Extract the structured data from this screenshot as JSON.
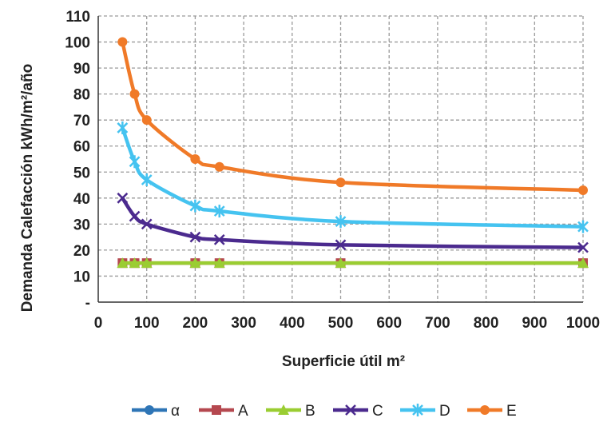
{
  "chart_data": {
    "type": "line",
    "title": "",
    "xlabel": "Superficie útil m²",
    "ylabel": "Demanda Calefacción kWh/m²/año",
    "xlim": [
      0,
      1000
    ],
    "ylim": [
      0,
      110
    ],
    "x_ticks": [
      "0",
      "100",
      "200",
      "300",
      "400",
      "500",
      "600",
      "700",
      "800",
      "900",
      "1000"
    ],
    "y_ticks": [
      "-",
      "10",
      "20",
      "30",
      "40",
      "50",
      "60",
      "70",
      "80",
      "90",
      "100",
      "110"
    ],
    "grid": true,
    "legend_position": "bottom",
    "series": [
      {
        "name": "α",
        "color": "#2e75b6",
        "marker": "circle",
        "x": [],
        "y": []
      },
      {
        "name": "A",
        "color": "#b5484f",
        "marker": "square",
        "x": [
          50,
          75,
          100,
          200,
          250,
          500,
          1000
        ],
        "y": [
          15,
          15,
          15,
          15,
          15,
          15,
          15
        ]
      },
      {
        "name": "B",
        "color": "#9acd32",
        "marker": "triangle",
        "x": [
          50,
          75,
          100,
          200,
          250,
          500,
          1000
        ],
        "y": [
          15,
          15,
          15,
          15,
          15,
          15,
          15
        ]
      },
      {
        "name": "C",
        "color": "#4b2a8e",
        "marker": "x",
        "x": [
          50,
          75,
          100,
          200,
          250,
          500,
          1000
        ],
        "y": [
          40,
          33,
          30,
          25,
          24,
          22,
          21
        ]
      },
      {
        "name": "D",
        "color": "#45c3f0",
        "marker": "star",
        "x": [
          50,
          75,
          100,
          200,
          250,
          500,
          1000
        ],
        "y": [
          67,
          54,
          47,
          37,
          35,
          31,
          29
        ]
      },
      {
        "name": "E",
        "color": "#f07a28",
        "marker": "circle",
        "x": [
          50,
          75,
          100,
          200,
          250,
          500,
          1000
        ],
        "y": [
          100,
          80,
          70,
          55,
          52,
          46,
          43
        ]
      }
    ]
  }
}
